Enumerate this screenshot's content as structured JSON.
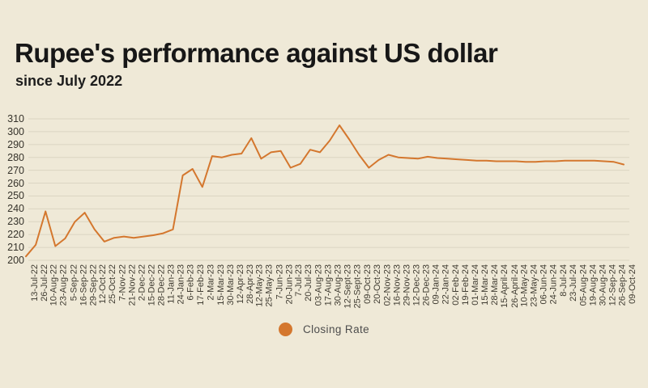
{
  "header": {
    "title": "Rupee's performance against US dollar",
    "subtitle": "since July 2022"
  },
  "legend": {
    "label": "Closing Rate"
  },
  "colors": {
    "background": "#efe9d7",
    "line": "#d4772e",
    "grid": "#dbd5c2",
    "y_tick_text": "#35322a",
    "x_tick_text": "#3f3b31",
    "title_text": "#171717",
    "legend_text": "#4d4d4d"
  },
  "chart_data": {
    "type": "line",
    "title": "Rupee's performance against US dollar",
    "subtitle": "since July 2022",
    "legend_position": "bottom",
    "grid": "horizontal-only",
    "series_name": "Closing Rate",
    "xlabel": "",
    "ylabel": "",
    "ylim": [
      200,
      310
    ],
    "yticks": [
      200,
      210,
      220,
      230,
      240,
      250,
      260,
      270,
      280,
      290,
      300,
      310
    ],
    "categories": [
      "13-Jul-22",
      "26-Jul-22",
      "10-Aug-22",
      "23-Aug-22",
      "5-Sep-22",
      "16-Sep-22",
      "29-Sep-22",
      "12-Oct-22",
      "25-Oct-22",
      "7-Nov-22",
      "21-Nov-22",
      "2-Dec-22",
      "15-Dec-22",
      "28-Dec-22",
      "11-Jan-23",
      "24-Jan-23",
      "6-Feb-23",
      "17-Feb-23",
      "2-Mar-23",
      "15-Mar-23",
      "30-Mar-23",
      "12-Apr-23",
      "28-Apr-23",
      "12-May-23",
      "25-May-23",
      "7-Jun-23",
      "20-Jun-23",
      "7-Jul-23",
      "20-Jul-23",
      "03-Aug-23",
      "17-Aug-23",
      "30-Aug-23",
      "12-Sept-23",
      "25-Sept-23",
      "09-Oct-23",
      "20-Oct-23",
      "02-Nov-23",
      "16-Nov-23",
      "29-Nov-23",
      "12-Dec-23",
      "26-Dec-23",
      "09-Jan-24",
      "22-Jan-24",
      "02-Feb-24",
      "19-Feb-24",
      "01-Mar-24",
      "15-Mar-24",
      "28-Mar-24",
      "15-April-24",
      "26-April-24",
      "10-May-24",
      "23-May-24",
      "06-Jun-24",
      "24-Jun-24",
      "8-Jul-24",
      "23-Jul-24",
      "05-Aug-24",
      "19-Aug-24",
      "30-Aug-24",
      "12-Sep-24",
      "26-Sep-24",
      "09-Oct-24"
    ],
    "values": [
      203,
      212,
      238,
      211,
      217,
      230,
      237,
      224,
      214.5,
      217.5,
      218.5,
      217.5,
      218.5,
      219.5,
      221,
      224,
      266,
      271,
      257,
      281,
      280,
      282,
      283,
      295,
      279,
      284,
      285,
      272,
      275,
      286,
      284,
      293,
      305,
      294,
      282,
      272,
      278,
      282,
      280,
      279.5,
      279,
      280.5,
      279.5,
      279,
      278.5,
      278,
      277.5,
      277.5,
      277,
      277,
      277,
      276.5,
      276.5,
      277,
      277,
      277.5,
      277.5,
      277.5,
      277.5,
      277,
      276.5,
      274.5
    ]
  }
}
